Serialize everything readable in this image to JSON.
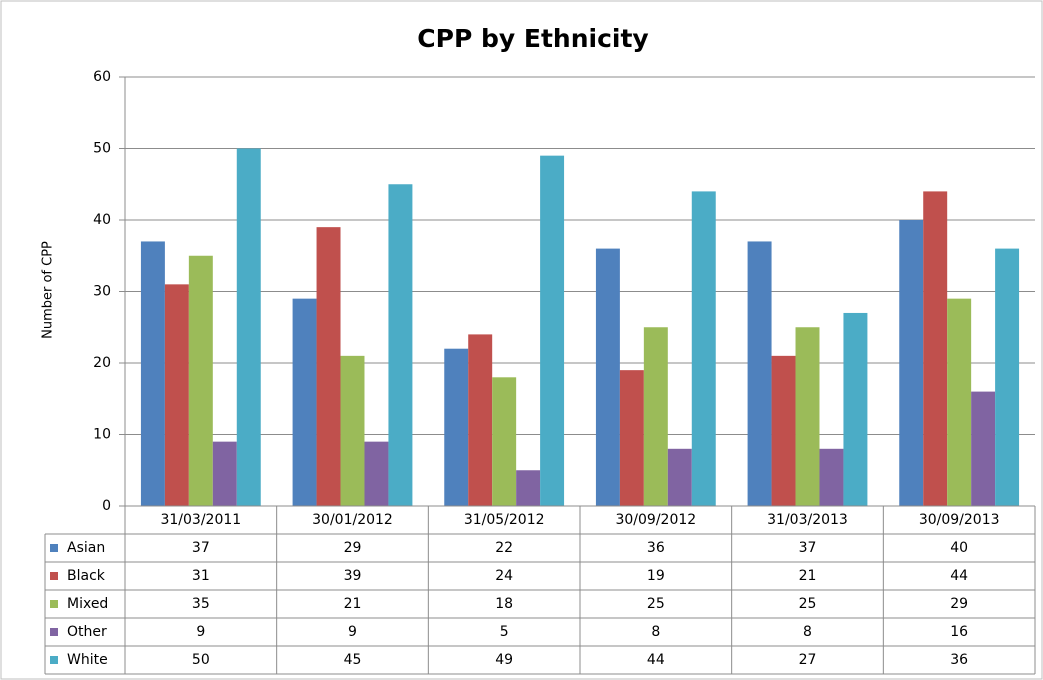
{
  "chart_data": {
    "type": "bar",
    "title": "CPP by Ethnicity",
    "y_label": "Number of CPP",
    "categories": [
      "31/03/2011",
      "30/01/2012",
      "31/05/2012",
      "30/09/2012",
      "31/03/2013",
      "30/09/2013"
    ],
    "series": [
      {
        "name": "Asian",
        "color": "#4f81bd",
        "values": [
          37,
          29,
          22,
          36,
          37,
          40
        ]
      },
      {
        "name": "Black",
        "color": "#c0504d",
        "values": [
          31,
          39,
          24,
          19,
          21,
          44
        ]
      },
      {
        "name": "Mixed",
        "color": "#9bbb59",
        "values": [
          35,
          21,
          18,
          25,
          25,
          29
        ]
      },
      {
        "name": "Other",
        "color": "#8064a2",
        "values": [
          9,
          9,
          5,
          8,
          8,
          16
        ]
      },
      {
        "name": "White",
        "color": "#4bacc6",
        "values": [
          50,
          45,
          49,
          44,
          27,
          36
        ]
      }
    ],
    "ylim": [
      0,
      60
    ],
    "yticks": [
      0,
      10,
      20,
      30,
      40,
      50,
      60
    ],
    "grid": true,
    "data_table": true
  }
}
